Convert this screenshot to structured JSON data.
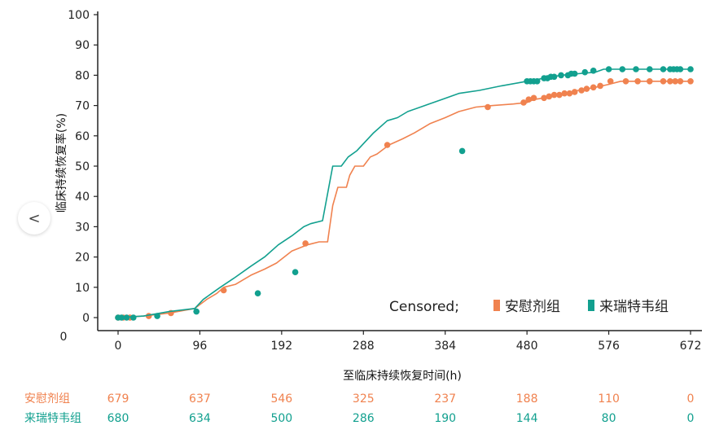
{
  "chart_data": {
    "type": "line",
    "title": "",
    "xlabel": "至临床持续恢复时间(h)",
    "ylabel": "临床持续恢复率(%)",
    "xlim": [
      0,
      672
    ],
    "ylim": [
      0,
      100
    ],
    "x_ticks": [
      "0",
      "96",
      "192",
      "288",
      "384",
      "480",
      "576",
      "672"
    ],
    "y_ticks": [
      "0",
      "10",
      "20",
      "30",
      "40",
      "50",
      "60",
      "70",
      "80",
      "90",
      "100"
    ],
    "y_origin_label": "0",
    "grid": false,
    "legend": {
      "position": "bottom-right",
      "prefix": "Censored;",
      "entries": [
        "安慰剂组",
        "来瑞特韦组"
      ]
    },
    "series": [
      {
        "name": "安慰剂组",
        "color": "#f0824f",
        "steps": [
          [
            0,
            0
          ],
          [
            30,
            0.5
          ],
          [
            60,
            1.5
          ],
          [
            90,
            3
          ],
          [
            104,
            6
          ],
          [
            116,
            8
          ],
          [
            124,
            10
          ],
          [
            138,
            11
          ],
          [
            156,
            14
          ],
          [
            172,
            16
          ],
          [
            186,
            18
          ],
          [
            204,
            22
          ],
          [
            222,
            24
          ],
          [
            236,
            25
          ],
          [
            246,
            25
          ],
          [
            252,
            37
          ],
          [
            258,
            43
          ],
          [
            268,
            43
          ],
          [
            272,
            47
          ],
          [
            278,
            50
          ],
          [
            288,
            50
          ],
          [
            296,
            53
          ],
          [
            304,
            54
          ],
          [
            318,
            57
          ],
          [
            334,
            59
          ],
          [
            348,
            61
          ],
          [
            366,
            64
          ],
          [
            384,
            66
          ],
          [
            400,
            68
          ],
          [
            420,
            69.5
          ],
          [
            440,
            70
          ],
          [
            464,
            70.5
          ],
          [
            480,
            71
          ],
          [
            488,
            72
          ],
          [
            500,
            72.5
          ],
          [
            520,
            73.5
          ],
          [
            540,
            75
          ],
          [
            560,
            76
          ],
          [
            576,
            77
          ],
          [
            590,
            78
          ],
          [
            672,
            78
          ]
        ],
        "censored": [
          [
            0,
            0
          ],
          [
            6,
            0
          ],
          [
            14,
            0
          ],
          [
            36,
            0.5
          ],
          [
            62,
            1.5
          ],
          [
            124,
            9
          ],
          [
            220,
            24.5
          ],
          [
            316,
            57
          ],
          [
            434,
            69.5
          ],
          [
            476,
            71
          ],
          [
            482,
            72
          ],
          [
            488,
            72.5
          ],
          [
            500,
            72.5
          ],
          [
            506,
            73
          ],
          [
            512,
            73.5
          ],
          [
            518,
            73.5
          ],
          [
            524,
            74
          ],
          [
            530,
            74
          ],
          [
            536,
            74.5
          ],
          [
            544,
            75
          ],
          [
            550,
            75.5
          ],
          [
            558,
            76
          ],
          [
            566,
            76.5
          ],
          [
            578,
            78
          ],
          [
            596,
            78
          ],
          [
            610,
            78
          ],
          [
            624,
            78
          ],
          [
            640,
            78
          ],
          [
            648,
            78
          ],
          [
            654,
            78
          ],
          [
            660,
            78
          ],
          [
            672,
            78
          ]
        ]
      },
      {
        "name": "来瑞特韦组",
        "color": "#12a08f",
        "steps": [
          [
            0,
            0
          ],
          [
            30,
            0.5
          ],
          [
            60,
            2
          ],
          [
            90,
            3
          ],
          [
            100,
            6
          ],
          [
            110,
            8
          ],
          [
            120,
            10
          ],
          [
            136,
            13
          ],
          [
            156,
            17
          ],
          [
            172,
            20
          ],
          [
            188,
            24
          ],
          [
            204,
            27
          ],
          [
            218,
            30
          ],
          [
            226,
            31
          ],
          [
            240,
            32
          ],
          [
            252,
            50
          ],
          [
            262,
            50
          ],
          [
            270,
            53
          ],
          [
            280,
            55
          ],
          [
            290,
            58
          ],
          [
            300,
            61
          ],
          [
            316,
            65
          ],
          [
            328,
            66
          ],
          [
            340,
            68
          ],
          [
            360,
            70
          ],
          [
            380,
            72
          ],
          [
            400,
            74
          ],
          [
            424,
            75
          ],
          [
            450,
            76.5
          ],
          [
            470,
            77.5
          ],
          [
            480,
            78
          ],
          [
            500,
            79
          ],
          [
            520,
            80
          ],
          [
            540,
            80.5
          ],
          [
            560,
            81
          ],
          [
            570,
            82
          ],
          [
            672,
            82
          ]
        ],
        "censored": [
          [
            0,
            0
          ],
          [
            4,
            0
          ],
          [
            10,
            0
          ],
          [
            18,
            0
          ],
          [
            46,
            0.5
          ],
          [
            92,
            2
          ],
          [
            164,
            8
          ],
          [
            208,
            15
          ],
          [
            404,
            55
          ],
          [
            480,
            78
          ],
          [
            484,
            78
          ],
          [
            488,
            78
          ],
          [
            492,
            78
          ],
          [
            500,
            79
          ],
          [
            504,
            79
          ],
          [
            508,
            79.5
          ],
          [
            512,
            79.5
          ],
          [
            520,
            80
          ],
          [
            528,
            80
          ],
          [
            532,
            80.5
          ],
          [
            536,
            80.5
          ],
          [
            548,
            81
          ],
          [
            558,
            81.5
          ],
          [
            576,
            82
          ],
          [
            592,
            82
          ],
          [
            608,
            82
          ],
          [
            624,
            82
          ],
          [
            640,
            82
          ],
          [
            648,
            82
          ],
          [
            652,
            82
          ],
          [
            656,
            82
          ],
          [
            660,
            82
          ],
          [
            672,
            82
          ]
        ]
      }
    ],
    "risk_table": {
      "rows": [
        {
          "label": "安慰剂组",
          "color": "#f0824f",
          "values": [
            "679",
            "637",
            "546",
            "325",
            "237",
            "188",
            "110",
            "0"
          ]
        },
        {
          "label": "来瑞特韦组",
          "color": "#12a08f",
          "values": [
            "680",
            "634",
            "500",
            "286",
            "190",
            "144",
            "80",
            "0"
          ]
        }
      ]
    }
  },
  "ui": {
    "back_button_label": "<",
    "back_icon": "chevron-left-icon"
  }
}
